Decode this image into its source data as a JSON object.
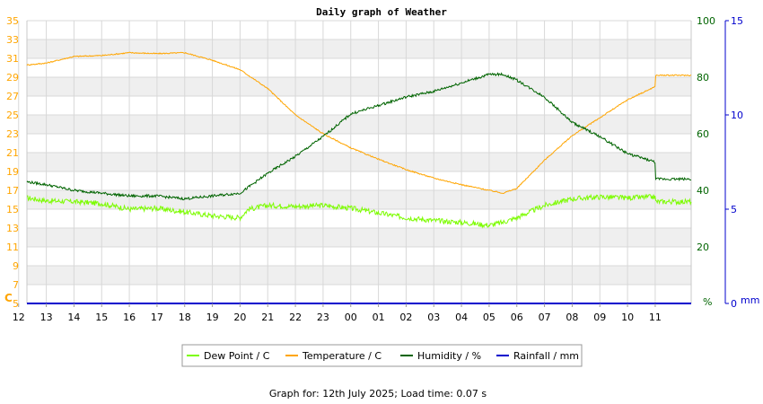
{
  "chart_data": {
    "type": "line",
    "title": "Daily graph of Weather",
    "footer": "Graph for: 12th July 2025; Load time: 0.07 s",
    "x_categories": [
      "13",
      "14",
      "15",
      "16",
      "17",
      "18",
      "19",
      "20",
      "21",
      "22",
      "23",
      "00",
      "01",
      "02",
      "03",
      "04",
      "05",
      "06",
      "07",
      "08",
      "09",
      "10",
      "11",
      "12"
    ],
    "axes": {
      "left": {
        "unit": "C",
        "color": "#ffa500",
        "ylim": [
          5,
          35
        ],
        "ticks": [
          "5",
          "7",
          "9",
          "11",
          "13",
          "15",
          "17",
          "19",
          "21",
          "23",
          "25",
          "27",
          "29",
          "31",
          "33",
          "35"
        ]
      },
      "right1": {
        "unit": "%",
        "color": "#006400",
        "ylim": [
          0,
          100
        ],
        "ticks": [
          "0",
          "20",
          "40",
          "60",
          "80",
          "100"
        ]
      },
      "right2": {
        "unit": "mm",
        "color": "#0000cd",
        "ylim": [
          0,
          15
        ],
        "ticks": [
          "0",
          "5",
          "10",
          "15"
        ]
      }
    },
    "grid": true,
    "legend_position": "bottom",
    "series": [
      {
        "name": "Dew Point / C",
        "axis": "left",
        "color": "#7cfc00",
        "x": [
          12.3,
          13,
          14,
          15,
          16,
          17,
          18,
          19,
          20,
          20.3,
          21,
          22,
          23,
          0,
          1,
          2,
          3,
          4,
          5,
          5.5,
          6,
          7,
          8,
          9,
          10,
          11,
          12,
          12.3
        ],
        "y": [
          16.2,
          15.9,
          15.8,
          15.6,
          15.0,
          15.1,
          14.7,
          14.3,
          14.1,
          15.0,
          15.4,
          15.3,
          15.4,
          15.1,
          14.6,
          14.1,
          13.8,
          13.6,
          13.3,
          13.6,
          14.1,
          15.4,
          16.1,
          16.3,
          16.2,
          16.3,
          16.1,
          15.8
        ]
      },
      {
        "name": "Temperature / C",
        "axis": "left",
        "color": "#ffa500",
        "x": [
          12.3,
          13,
          14,
          15,
          16,
          17,
          18,
          19,
          20,
          21,
          22,
          23,
          0,
          1,
          2,
          3,
          4,
          5,
          5.5,
          6,
          7,
          8,
          9,
          10,
          11,
          12,
          12.3
        ],
        "y": [
          30.3,
          30.5,
          31.2,
          31.3,
          31.6,
          31.5,
          31.6,
          30.8,
          29.8,
          27.8,
          25.0,
          23.0,
          21.5,
          20.3,
          19.2,
          18.3,
          17.6,
          17.0,
          16.7,
          17.2,
          20.2,
          22.8,
          24.7,
          26.6,
          28.0,
          29.1,
          29.2
        ]
      },
      {
        "name": "Humidity / %",
        "axis": "right1",
        "color": "#006400",
        "x": [
          12.3,
          13,
          14,
          15,
          16,
          17,
          18,
          19,
          20,
          21,
          22,
          23,
          0,
          1,
          2,
          3,
          4,
          5,
          5.5,
          6,
          7,
          8,
          9,
          10,
          11,
          12,
          12.3
        ],
        "y": [
          43,
          42,
          40,
          39,
          38,
          38,
          37,
          38,
          39,
          46,
          52,
          59,
          67,
          70,
          73,
          75,
          78,
          81,
          81,
          79,
          73,
          64,
          59,
          53,
          50,
          47,
          44
        ]
      },
      {
        "name": "Rainfall / mm",
        "axis": "right2",
        "color": "#0000cd",
        "x": [
          12.3,
          12.3
        ],
        "y": [
          0,
          0
        ]
      }
    ]
  }
}
